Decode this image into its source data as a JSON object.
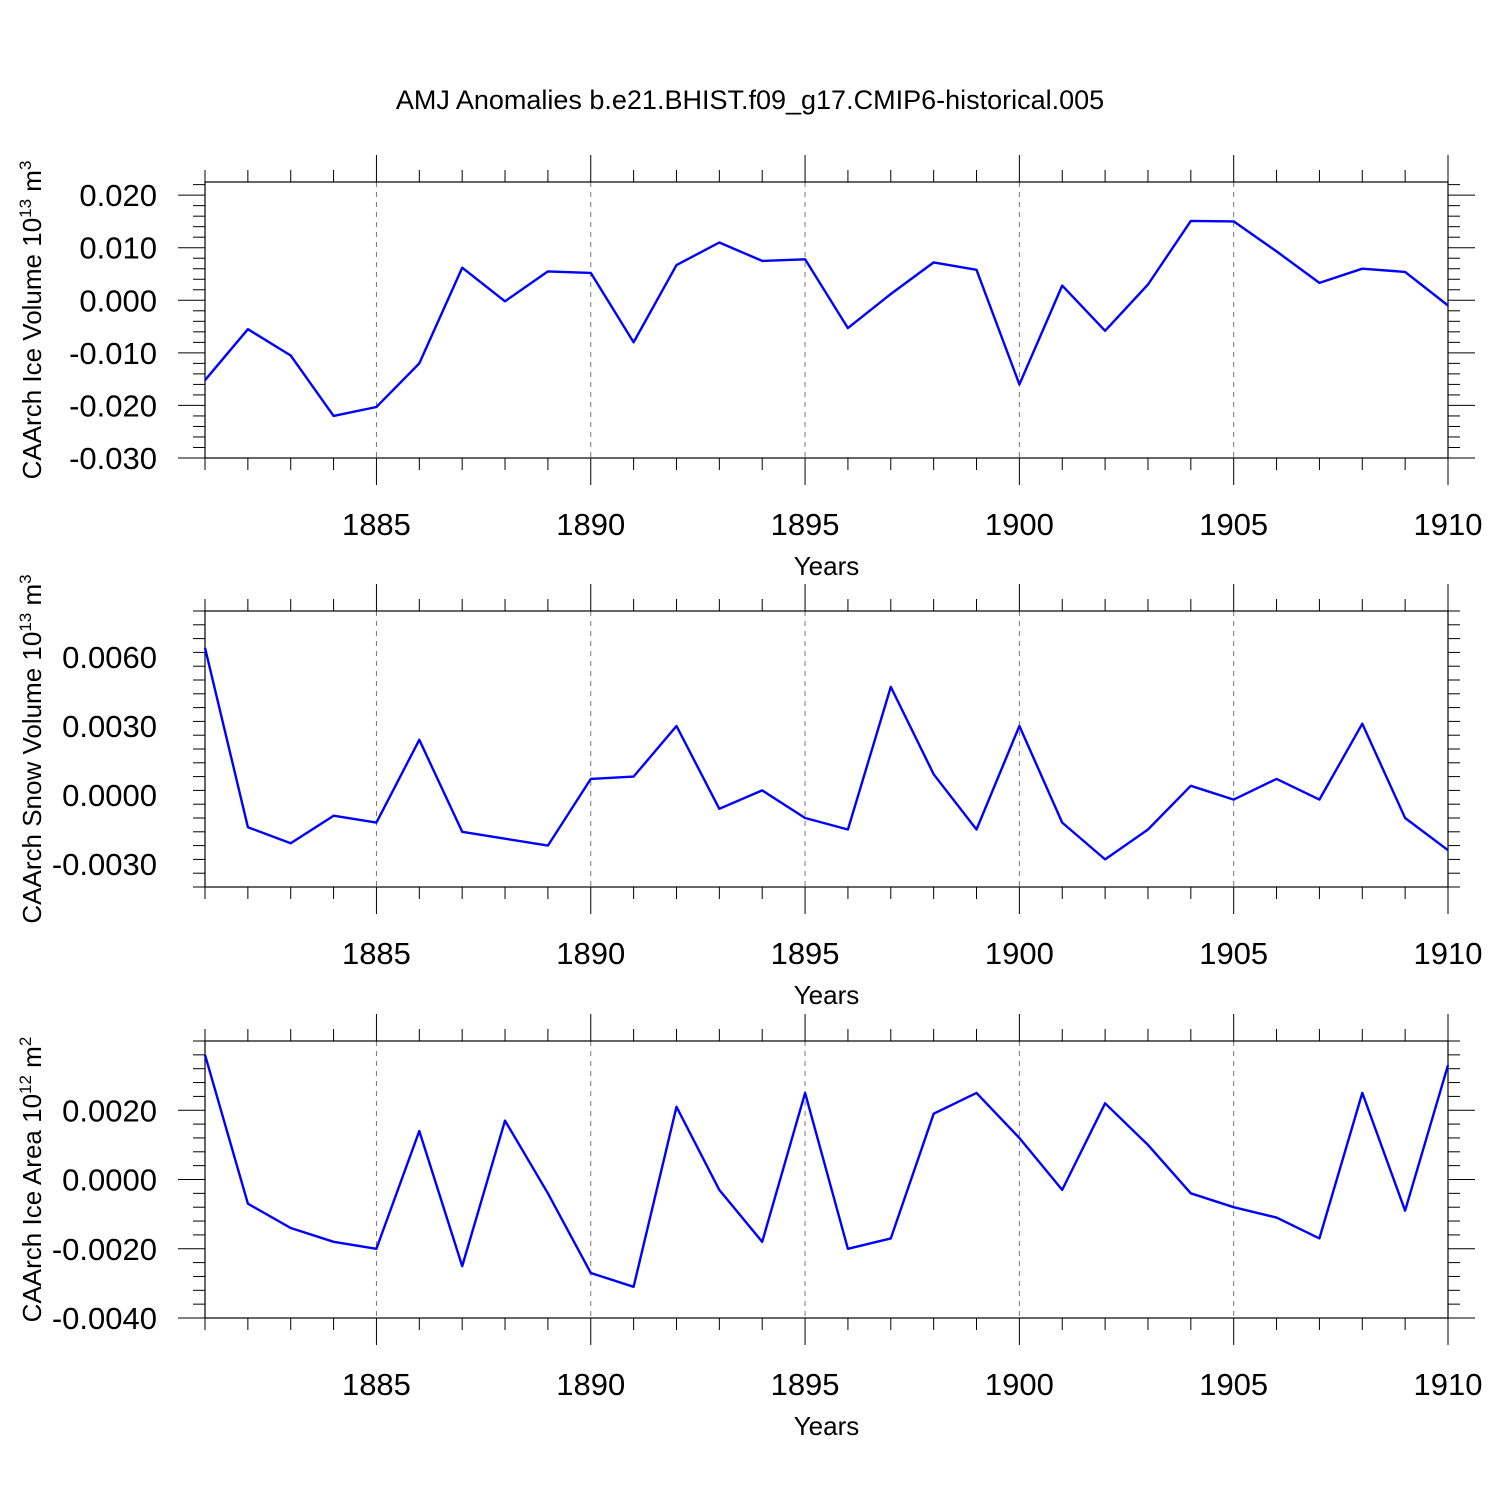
{
  "title": "AMJ Anomalies b.e21.BHIST.f09_g17.CMIP6-historical.005",
  "colors": {
    "line": "#0000ff",
    "frame": "#000000",
    "grid": "#777777"
  },
  "chart_data": [
    {
      "type": "line",
      "ylabel": "CAArch Ice Volume 10",
      "ylabel_exp": "13",
      "ylabel_unit": " m",
      "ylabel_unit_exp": "3",
      "xlabel": "Years",
      "xlim": [
        1881,
        1910
      ],
      "ylim": [
        -0.03,
        0.0225
      ],
      "yticks": [
        -0.03,
        -0.02,
        -0.01,
        0.0,
        0.01,
        0.02
      ],
      "ytick_labels": [
        "-0.030",
        "-0.020",
        "-0.010",
        "0.000",
        "0.010",
        "0.020"
      ],
      "xticks": [
        1885,
        1890,
        1895,
        1900,
        1905,
        1910
      ],
      "xtick_labels": [
        "1885",
        "1890",
        "1895",
        "1900",
        "1905",
        "1910"
      ],
      "x": [
        1881,
        1882,
        1883,
        1884,
        1885,
        1886,
        1887,
        1888,
        1889,
        1890,
        1891,
        1892,
        1893,
        1894,
        1895,
        1896,
        1897,
        1898,
        1899,
        1900,
        1901,
        1902,
        1903,
        1904,
        1905,
        1906,
        1907,
        1908,
        1909,
        1910
      ],
      "series": [
        {
          "name": "CAArch Ice Volume",
          "values": [
            -0.0152,
            -0.0055,
            -0.0105,
            -0.022,
            -0.0203,
            -0.012,
            0.0062,
            -0.0002,
            0.0055,
            0.0052,
            -0.008,
            0.0067,
            0.011,
            0.0075,
            0.0078,
            -0.0053,
            0.0012,
            0.0072,
            0.0058,
            -0.016,
            0.0028,
            -0.0058,
            0.003,
            0.0151,
            0.015,
            0.0093,
            0.0033,
            0.006,
            0.0054,
            -0.001
          ]
        }
      ]
    },
    {
      "type": "line",
      "ylabel": "CAArch Snow Volume 10",
      "ylabel_exp": "13",
      "ylabel_unit": " m",
      "ylabel_unit_exp": "3",
      "xlabel": "Years",
      "xlim": [
        1881,
        1910
      ],
      "ylim": [
        -0.004,
        0.008
      ],
      "yticks": [
        -0.003,
        0.0,
        0.003,
        0.006
      ],
      "ytick_labels": [
        "-0.0030",
        "0.0000",
        "0.0030",
        "0.0060"
      ],
      "xticks": [
        1885,
        1890,
        1895,
        1900,
        1905,
        1910
      ],
      "xtick_labels": [
        "1885",
        "1890",
        "1895",
        "1900",
        "1905",
        "1910"
      ],
      "x": [
        1881,
        1882,
        1883,
        1884,
        1885,
        1886,
        1887,
        1888,
        1889,
        1890,
        1891,
        1892,
        1893,
        1894,
        1895,
        1896,
        1897,
        1898,
        1899,
        1900,
        1901,
        1902,
        1903,
        1904,
        1905,
        1906,
        1907,
        1908,
        1909,
        1910
      ],
      "series": [
        {
          "name": "CAArch Snow Volume",
          "values": [
            0.0064,
            -0.0014,
            -0.0021,
            -0.0009,
            -0.0012,
            0.0024,
            -0.0016,
            -0.0019,
            -0.0022,
            0.0007,
            0.0008,
            0.003,
            -0.0006,
            0.0002,
            -0.001,
            -0.0015,
            0.0047,
            0.0009,
            -0.0015,
            0.003,
            -0.0012,
            -0.0028,
            -0.0015,
            0.0004,
            -0.0002,
            0.0007,
            -0.0002,
            0.0031,
            -0.001,
            -0.0024
          ]
        }
      ]
    },
    {
      "type": "line",
      "ylabel": "CAArch Ice Area 10",
      "ylabel_exp": "12",
      "ylabel_unit": " m",
      "ylabel_unit_exp": "2",
      "xlabel": "Years",
      "xlim": [
        1881,
        1910
      ],
      "ylim": [
        -0.004,
        0.004
      ],
      "yticks": [
        -0.004,
        -0.002,
        0.0,
        0.002
      ],
      "ytick_labels": [
        "-0.0040",
        "-0.0020",
        "0.0000",
        "0.0020"
      ],
      "xticks": [
        1885,
        1890,
        1895,
        1900,
        1905,
        1910
      ],
      "xtick_labels": [
        "1885",
        "1890",
        "1895",
        "1900",
        "1905",
        "1910"
      ],
      "x": [
        1881,
        1882,
        1883,
        1884,
        1885,
        1886,
        1887,
        1888,
        1889,
        1890,
        1891,
        1892,
        1893,
        1894,
        1895,
        1896,
        1897,
        1898,
        1899,
        1900,
        1901,
        1902,
        1903,
        1904,
        1905,
        1906,
        1907,
        1908,
        1909,
        1910
      ],
      "series": [
        {
          "name": "CAArch Ice Area",
          "values": [
            0.0036,
            -0.0007,
            -0.0014,
            -0.0018,
            -0.002,
            0.0014,
            -0.0025,
            0.0017,
            -0.0004,
            -0.0027,
            -0.0031,
            0.0021,
            -0.0003,
            -0.0018,
            0.0025,
            -0.002,
            -0.0017,
            0.0019,
            0.0025,
            0.0012,
            -0.0003,
            0.0022,
            0.001,
            -0.0004,
            -0.0008,
            -0.0011,
            -0.0017,
            0.0025,
            -0.0009,
            0.0033
          ]
        }
      ]
    }
  ]
}
